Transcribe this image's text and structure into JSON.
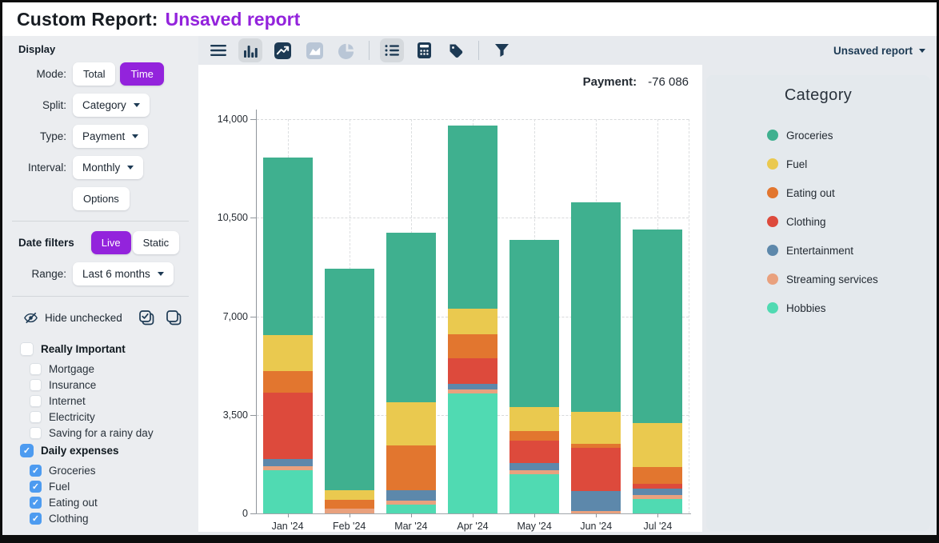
{
  "header": {
    "title": "Custom Report:",
    "subtitle": "Unsaved report"
  },
  "toolbar": {
    "report_selector": "Unsaved report",
    "icons": [
      {
        "name": "menu-icon",
        "state": "normal"
      },
      {
        "name": "bar-chart-icon",
        "state": "selected"
      },
      {
        "name": "line-chart-icon",
        "state": "normal"
      },
      {
        "name": "area-chart-icon",
        "state": "muted"
      },
      {
        "name": "pie-chart-icon",
        "state": "muted"
      },
      {
        "name": "divider",
        "state": ""
      },
      {
        "name": "list-icon",
        "state": "selected"
      },
      {
        "name": "calculator-icon",
        "state": "normal"
      },
      {
        "name": "tag-icon",
        "state": "normal"
      },
      {
        "name": "divider",
        "state": ""
      },
      {
        "name": "filter-icon",
        "state": "normal"
      }
    ]
  },
  "sidebar": {
    "display": {
      "heading": "Display",
      "mode_label": "Mode:",
      "mode_options": [
        "Total",
        "Time"
      ],
      "mode_selected": "Time",
      "split_label": "Split:",
      "split_value": "Category",
      "type_label": "Type:",
      "type_value": "Payment",
      "interval_label": "Interval:",
      "interval_value": "Monthly",
      "options_button": "Options"
    },
    "date_filters": {
      "heading": "Date filters",
      "options": [
        "Live",
        "Static"
      ],
      "selected": "Live",
      "range_label": "Range:",
      "range_value": "Last 6 months"
    },
    "hide_unchecked_label": "Hide unchecked",
    "category_groups": [
      {
        "label": "Really Important",
        "checked": false,
        "children": [
          {
            "label": "Mortgage",
            "checked": false
          },
          {
            "label": "Insurance",
            "checked": false
          },
          {
            "label": "Internet",
            "checked": false
          },
          {
            "label": "Electricity",
            "checked": false
          },
          {
            "label": "Saving for a rainy day",
            "checked": false
          }
        ]
      },
      {
        "label": "Daily expenses",
        "checked": true,
        "children": [
          {
            "label": "Groceries",
            "checked": true
          },
          {
            "label": "Fuel",
            "checked": true
          },
          {
            "label": "Eating out",
            "checked": true
          },
          {
            "label": "Clothing",
            "checked": true
          }
        ]
      }
    ]
  },
  "chart_data": {
    "type": "bar",
    "stacked": true,
    "header": {
      "label": "Payment:",
      "value": "-76 086"
    },
    "categories": [
      "Jan '24",
      "Feb '24",
      "Mar '24",
      "Apr '24",
      "May '24",
      "Jun '24",
      "Jul '24"
    ],
    "series": [
      {
        "name": "Hobbies",
        "color": "#50dab2",
        "values": [
          1530,
          0,
          320,
          4250,
          1390,
          0,
          500
        ]
      },
      {
        "name": "Streaming services",
        "color": "#e9a17e",
        "values": [
          160,
          170,
          140,
          150,
          140,
          90,
          140
        ]
      },
      {
        "name": "Entertainment",
        "color": "#5d88ab",
        "values": [
          240,
          0,
          370,
          210,
          250,
          700,
          250
        ]
      },
      {
        "name": "Clothing",
        "color": "#dd4a3c",
        "values": [
          2360,
          0,
          0,
          910,
          800,
          1540,
          170
        ]
      },
      {
        "name": "Eating out",
        "color": "#e2762f",
        "values": [
          760,
          310,
          1590,
          840,
          350,
          140,
          580
        ]
      },
      {
        "name": "Fuel",
        "color": "#eac94f",
        "values": [
          1290,
          350,
          1540,
          910,
          840,
          1140,
          1570
        ]
      },
      {
        "name": "Groceries",
        "color": "#3fb08f",
        "values": [
          6300,
          7870,
          6020,
          6510,
          5930,
          7440,
          6860
        ]
      }
    ],
    "totals": [
      12640,
      8700,
      9980,
      13780,
      9700,
      11050,
      10070
    ],
    "ylim": [
      0,
      14000
    ],
    "yticks": [
      0,
      3500,
      7000,
      10500,
      14000
    ],
    "ytick_labels": [
      "0",
      "3,500",
      "7,000",
      "10,500",
      "14,000"
    ],
    "grid": "dashed",
    "legend_position": "right"
  },
  "legend": {
    "title": "Category",
    "items": [
      {
        "label": "Groceries",
        "color": "#3fb08f"
      },
      {
        "label": "Fuel",
        "color": "#eac94f"
      },
      {
        "label": "Eating out",
        "color": "#e2762f"
      },
      {
        "label": "Clothing",
        "color": "#dd4a3c"
      },
      {
        "label": "Entertainment",
        "color": "#5d88ab"
      },
      {
        "label": "Streaming services",
        "color": "#e9a17e"
      },
      {
        "label": "Hobbies",
        "color": "#50dab2"
      }
    ]
  },
  "colors": {
    "accent_purple": "#9323dc",
    "checkbox_blue": "#4d9bf0",
    "icon_navy": "#1d3a54",
    "icon_muted": "#b9c6d6"
  }
}
